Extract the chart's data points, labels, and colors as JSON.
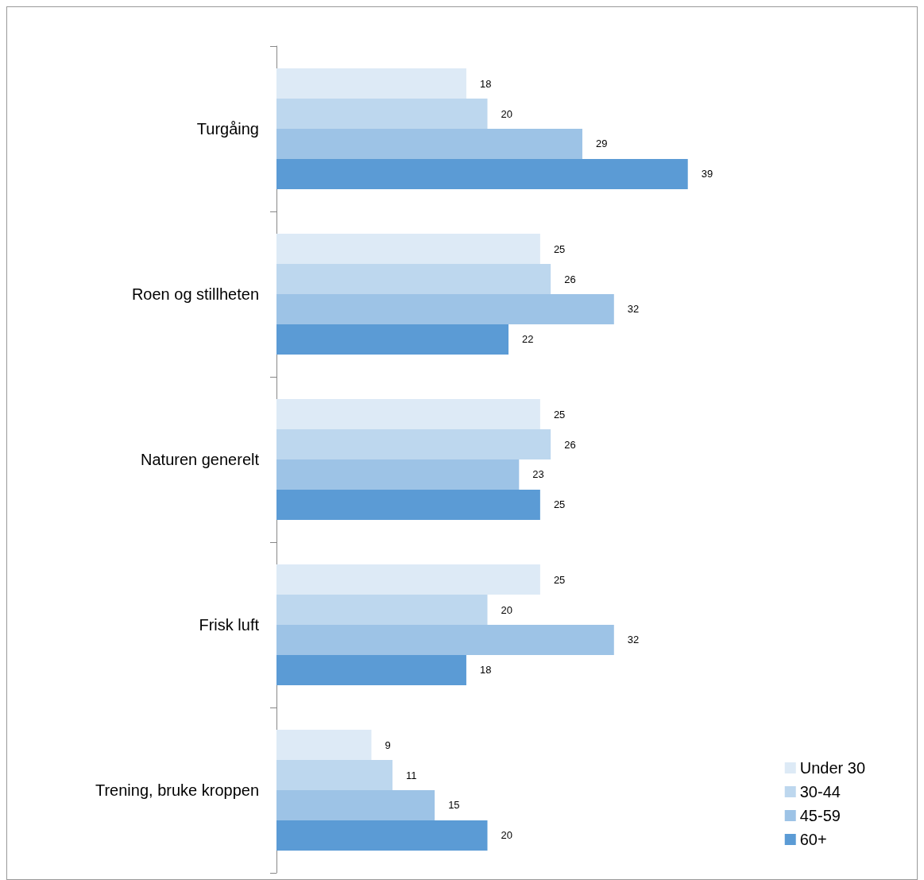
{
  "chart_data": {
    "type": "bar",
    "orientation": "horizontal",
    "categories": [
      "Turgåing",
      "Roen og stillheten",
      "Naturen generelt",
      "Frisk luft",
      "Trening, bruke kroppen"
    ],
    "series": [
      {
        "name": "Under 30",
        "color": "#ddeaf6",
        "values": [
          18,
          25,
          25,
          25,
          9
        ]
      },
      {
        "name": "30-44",
        "color": "#bdd7ee",
        "values": [
          20,
          26,
          26,
          20,
          11
        ]
      },
      {
        "name": "45-59",
        "color": "#9dc3e6",
        "values": [
          29,
          32,
          23,
          32,
          15
        ]
      },
      {
        "name": "60+",
        "color": "#5b9bd5",
        "values": [
          39,
          22,
          25,
          18,
          20
        ]
      }
    ],
    "data_labels": true,
    "legend": "bottom right",
    "grid": false,
    "tick_labels": "y"
  }
}
